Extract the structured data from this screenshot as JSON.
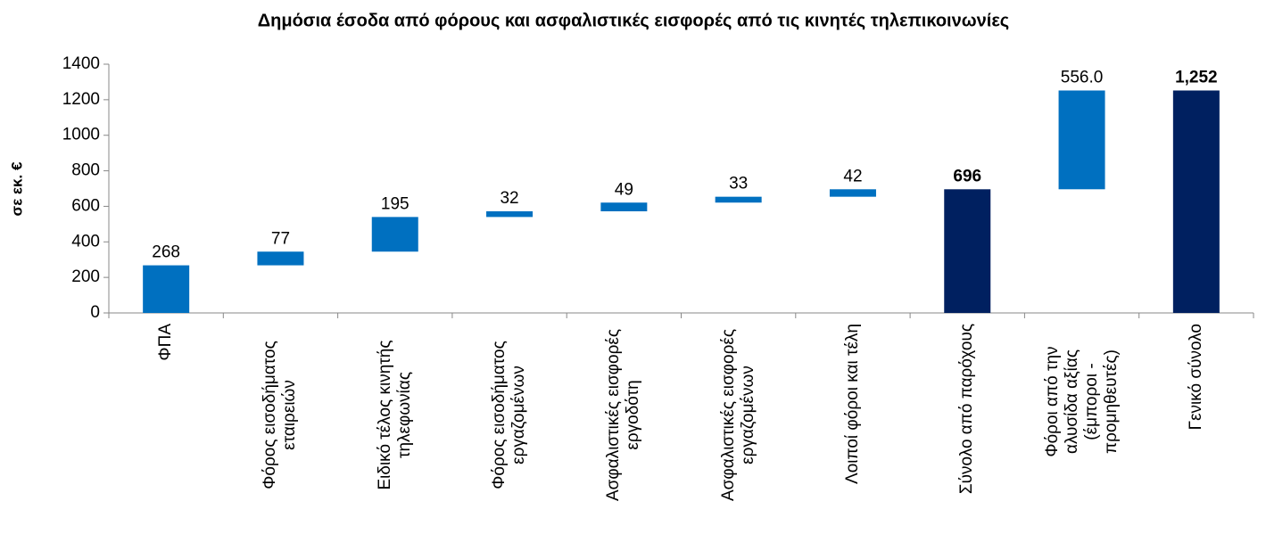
{
  "chart_data": {
    "type": "waterfall",
    "title": "Δημόσια έσοδα από φόρους και ασφαλιστικές εισφορές από τις κινητές τηλεπικοινωνίες",
    "y_label": "σε εκ. €",
    "categories": [
      "ΦΠΑ",
      "Φόρος εισοδήματος εταιρειών",
      "Ειδικό τέλος κινητής τηλεφωνίας",
      "Φόρος εισοδήματος εργαζομένων",
      "Ασφαλιστικές εισφορές εργοδότη",
      "Ασφαλιστικές εισφορές εργαζομένων",
      "Λοιποί φόροι και τέλη",
      "Σύνολο από παρόχους",
      "Φόροι από την αλυσίδα αξίας (έμποροι - προμηθευτές)",
      "Γενικό σύνολο"
    ],
    "values": [
      268,
      77,
      195,
      32,
      49,
      33,
      42,
      696,
      556,
      1252
    ],
    "value_labels": [
      "268",
      "77",
      "195",
      "32",
      "49",
      "33",
      "42",
      "696",
      "556.0",
      "1,252"
    ],
    "totals": [
      false,
      false,
      false,
      false,
      false,
      false,
      false,
      true,
      false,
      true
    ],
    "color": "#0070c0",
    "total_color": "#002060",
    "ylim": [
      0,
      1400
    ],
    "yticks": [
      0,
      200,
      400,
      600,
      800,
      1000,
      1200,
      1400
    ]
  }
}
